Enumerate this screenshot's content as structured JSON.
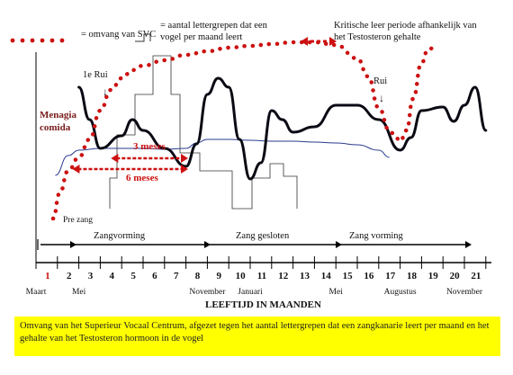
{
  "legend": {
    "svc": "= omvang van SVC",
    "syllables_line1": "= aantal lettergrepen dat een",
    "syllables_line2": "vogel per maand leert",
    "critical_line1": "Kritische leer periode afhankelijk van",
    "critical_line2": "het Testosteron gehalte"
  },
  "annotations": {
    "first_moult": "1e  Rui",
    "moult": "Rui",
    "menarche_line1": "Menagia",
    "menarche_line2": "comida",
    "three_months": "3 meses",
    "six_months": "6 meses",
    "pre_song": "Pre zang"
  },
  "phases": [
    {
      "label": "Zangvorming"
    },
    {
      "label": "Zang gesloten"
    },
    {
      "label": "Zang vorming"
    }
  ],
  "axis": {
    "xlabel": "LEEFTIJD IN MAANDEN",
    "ticks": [
      "1",
      "2",
      "3",
      "4",
      "5",
      "6",
      "7",
      "8",
      "9",
      "10",
      "11",
      "12",
      "13",
      "14",
      "15",
      "16",
      "17",
      "18",
      "19",
      "20",
      "21"
    ],
    "month_labels": [
      {
        "text": "Maart",
        "at": 0
      },
      {
        "text": "Mei",
        "at": 2
      },
      {
        "text": "November",
        "at": 8
      },
      {
        "text": "Januari",
        "at": 10
      },
      {
        "text": "Mei",
        "at": 14
      },
      {
        "text": "Augustus",
        "at": 17
      },
      {
        "text": "November",
        "at": 20
      }
    ]
  },
  "colors": {
    "svc": "#cc1111",
    "testosterone": "#0a0a14",
    "syllables": "#333333",
    "songline": "#2a3b8f",
    "caption_bg": "#ffff00"
  },
  "chart_data": {
    "type": "line",
    "x_unit": "months",
    "xlim": [
      0,
      21.5
    ],
    "series": [
      {
        "name": "omvang van SVC",
        "x": [
          0.8,
          1.1,
          1.5,
          2,
          2.5,
          3,
          3.5,
          4,
          4.5,
          5,
          6,
          7,
          8,
          9,
          10,
          11,
          12,
          13,
          14,
          15,
          15.5,
          16,
          16.5,
          16.8,
          17,
          17.3,
          17.6,
          18,
          18.3,
          18.6
        ],
        "y": [
          2,
          30,
          55,
          70,
          90,
          122,
          145,
          158,
          167,
          172,
          178,
          184,
          188,
          192,
          194,
          196,
          198,
          198,
          195,
          180,
          160,
          125,
          100,
          92,
          88,
          100,
          135,
          175,
          190,
          192
        ]
      },
      {
        "name": "testosterone",
        "x": [
          2,
          2.5,
          3,
          4,
          4.5,
          5,
          6,
          7,
          7.5,
          8,
          8.5,
          9,
          9.5,
          10,
          10.5,
          11,
          11.5,
          12,
          13,
          14,
          15,
          16,
          17,
          17.5,
          18,
          19,
          19.5,
          20,
          20.5,
          21
        ],
        "y": [
          148,
          112,
          80,
          94,
          112,
          100,
          80,
          60,
          85,
          140,
          158,
          148,
          90,
          46,
          64,
          122,
          112,
          98,
          104,
          128,
          128,
          112,
          78,
          92,
          122,
          126,
          110,
          128,
          148,
          100
        ]
      },
      {
        "name": "songline",
        "x": [
          0.9,
          1.5,
          2,
          3,
          4,
          5,
          6,
          7,
          7.5,
          8,
          9,
          10,
          11,
          12,
          13,
          14,
          15,
          16,
          16.5
        ],
        "y": [
          50,
          72,
          78,
          80,
          80,
          80,
          79,
          80,
          86,
          90,
          90,
          89,
          88,
          88,
          87,
          86,
          84,
          78,
          70
        ]
      }
    ]
  }
}
